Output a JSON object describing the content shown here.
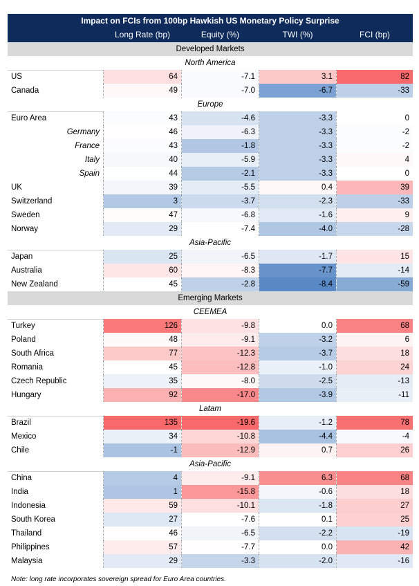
{
  "title": "Impact on FCIs from 100bp Hawkish US Monetary Policy Surprise",
  "columns": [
    "Long Rate (bp)",
    "Equity (%)",
    "TWI (%)",
    "FCI (bp)"
  ],
  "note": "Note: long rate incorporates sovereign spread for Euro Area countries.",
  "colors": {
    "header_bg": "#0f2b5b",
    "group_bg": "#d9d9d9",
    "positive": "#f8696b",
    "negative": "#5a8ac6"
  },
  "chart_data": {
    "type": "table",
    "title": "Impact on FCIs from 100bp Hawkish US Monetary Policy Surprise",
    "columns": [
      "Long Rate (bp)",
      "Equity (%)",
      "TWI (%)",
      "FCI (bp)"
    ],
    "groups": [
      {
        "name": "Developed Markets",
        "regions": [
          {
            "name": "North America",
            "rows": [
              {
                "label": "US",
                "values": [
                  64,
                  -7.1,
                  3.1,
                  82
                ]
              },
              {
                "label": "Canada",
                "values": [
                  49,
                  -7.0,
                  -6.7,
                  -33
                ]
              }
            ]
          },
          {
            "name": "Europe",
            "rows": [
              {
                "label": "Euro Area",
                "values": [
                  43,
                  -4.6,
                  -3.3,
                  0
                ]
              },
              {
                "label": "Germany",
                "italic": true,
                "values": [
                  46,
                  -6.3,
                  -3.3,
                  -2
                ]
              },
              {
                "label": "France",
                "italic": true,
                "values": [
                  43,
                  -1.8,
                  -3.3,
                  -2
                ]
              },
              {
                "label": "Italy",
                "italic": true,
                "values": [
                  40,
                  -5.9,
                  -3.3,
                  4
                ]
              },
              {
                "label": "Spain",
                "italic": true,
                "values": [
                  44,
                  -2.1,
                  -3.3,
                  0
                ]
              },
              {
                "label": "UK",
                "values": [
                  39,
                  -5.5,
                  0.4,
                  39
                ]
              },
              {
                "label": "Switzerland",
                "values": [
                  3,
                  -3.7,
                  -2.3,
                  -33
                ]
              },
              {
                "label": "Sweden",
                "values": [
                  47,
                  -6.8,
                  -1.6,
                  9
                ]
              },
              {
                "label": "Norway",
                "values": [
                  29,
                  -7.4,
                  -4.0,
                  -28
                ]
              }
            ]
          },
          {
            "name": "Asia-Pacific",
            "rows": [
              {
                "label": "Japan",
                "values": [
                  25,
                  -6.5,
                  -1.7,
                  15
                ]
              },
              {
                "label": "Australia",
                "values": [
                  60,
                  -8.3,
                  -7.7,
                  -14
                ]
              },
              {
                "label": "New Zealand",
                "values": [
                  45,
                  -2.8,
                  -8.4,
                  -59
                ]
              }
            ]
          }
        ]
      },
      {
        "name": "Emerging Markets",
        "regions": [
          {
            "name": "CEEMEA",
            "rows": [
              {
                "label": "Turkey",
                "values": [
                  126,
                  -9.8,
                  0.0,
                  68
                ]
              },
              {
                "label": "Poland",
                "values": [
                  48,
                  -9.1,
                  -3.2,
                  6
                ]
              },
              {
                "label": "South Africa",
                "values": [
                  77,
                  -12.3,
                  -3.7,
                  18
                ]
              },
              {
                "label": "Romania",
                "values": [
                  45,
                  -12.8,
                  -1.0,
                  24
                ]
              },
              {
                "label": "Czech Republic",
                "values": [
                  35,
                  -8.0,
                  -2.5,
                  -13
                ]
              },
              {
                "label": "Hungary",
                "values": [
                  92,
                  -17.0,
                  -3.9,
                  -11
                ]
              }
            ]
          },
          {
            "name": "Latam",
            "rows": [
              {
                "label": "Brazil",
                "values": [
                  135,
                  -19.6,
                  -1.2,
                  78
                ]
              },
              {
                "label": "Mexico",
                "values": [
                  34,
                  -10.8,
                  -4.4,
                  -4
                ]
              },
              {
                "label": "Chile",
                "values": [
                  -1,
                  -12.9,
                  0.7,
                  26
                ]
              }
            ]
          },
          {
            "name": "Asia-Pacific",
            "rows": [
              {
                "label": "China",
                "values": [
                  4,
                  -9.1,
                  6.3,
                  68
                ]
              },
              {
                "label": "India",
                "values": [
                  1,
                  -15.8,
                  -0.6,
                  18
                ]
              },
              {
                "label": "Indonesia",
                "values": [
                  59,
                  -10.1,
                  -1.8,
                  27
                ]
              },
              {
                "label": "South Korea",
                "values": [
                  27,
                  -7.6,
                  0.1,
                  25
                ]
              },
              {
                "label": "Thailand",
                "values": [
                  46,
                  -6.5,
                  -2.2,
                  -19
                ]
              },
              {
                "label": "Philippines",
                "values": [
                  57,
                  -7.7,
                  0.0,
                  42
                ]
              },
              {
                "label": "Malaysia",
                "values": [
                  29,
                  -3.3,
                  -2.0,
                  -16
                ]
              }
            ]
          }
        ]
      }
    ]
  }
}
